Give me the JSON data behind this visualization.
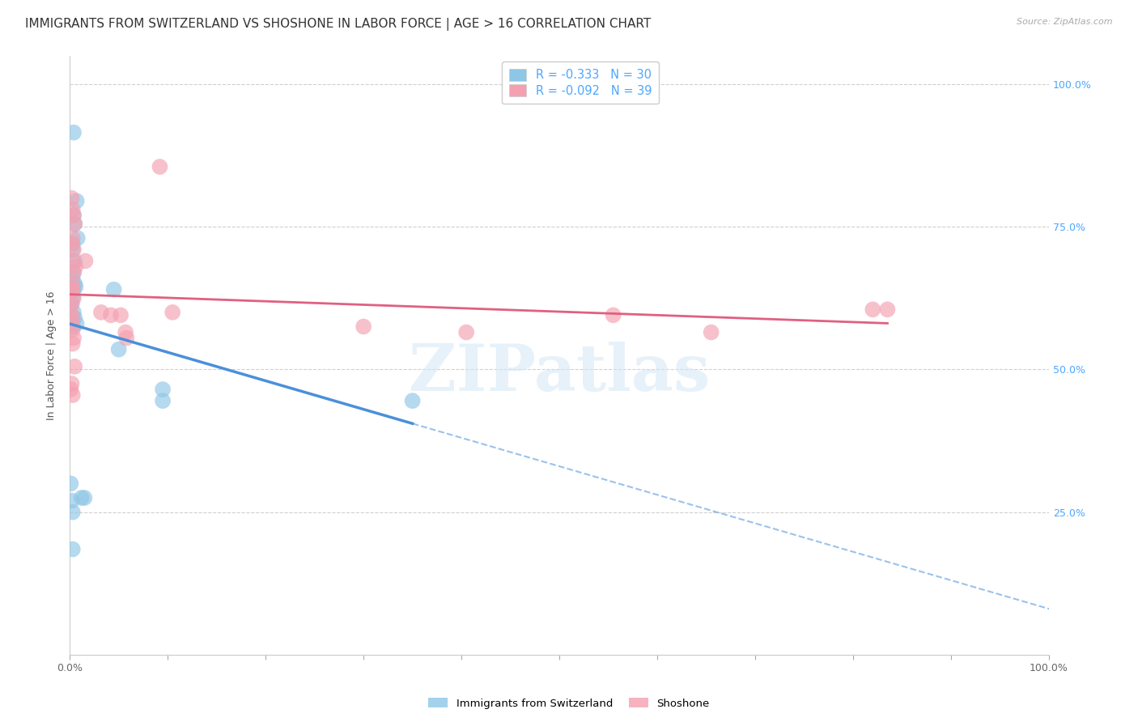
{
  "title": "IMMIGRANTS FROM SWITZERLAND VS SHOSHONE IN LABOR FORCE | AGE > 16 CORRELATION CHART",
  "source": "Source: ZipAtlas.com",
  "ylabel": "In Labor Force | Age > 16",
  "right_yticks": [
    "100.0%",
    "75.0%",
    "50.0%",
    "25.0%"
  ],
  "right_ytick_vals": [
    1.0,
    0.75,
    0.5,
    0.25
  ],
  "legend_swiss_r": "-0.333",
  "legend_swiss_n": "30",
  "legend_shoshone_r": "-0.092",
  "legend_shoshone_n": "39",
  "legend_label_swiss": "Immigrants from Switzerland",
  "legend_label_shoshone": "Shoshone",
  "swiss_color": "#8ec6e6",
  "shoshone_color": "#f4a0b0",
  "swiss_alpha": 0.65,
  "shoshone_alpha": 0.65,
  "swiss_points_x": [
    0.004,
    0.007,
    0.004,
    0.005,
    0.008,
    0.003,
    0.003,
    0.005,
    0.004,
    0.003,
    0.005,
    0.006,
    0.004,
    0.003,
    0.002,
    0.004,
    0.005,
    0.007,
    0.003,
    0.001,
    0.002,
    0.003,
    0.003,
    0.045,
    0.05,
    0.095,
    0.095,
    0.35,
    0.012,
    0.015
  ],
  "swiss_points_y": [
    0.915,
    0.795,
    0.77,
    0.755,
    0.73,
    0.72,
    0.71,
    0.69,
    0.67,
    0.66,
    0.65,
    0.645,
    0.64,
    0.625,
    0.615,
    0.6,
    0.59,
    0.58,
    0.575,
    0.3,
    0.27,
    0.25,
    0.185,
    0.64,
    0.535,
    0.465,
    0.445,
    0.445,
    0.275,
    0.275
  ],
  "shoshone_points_x": [
    0.002,
    0.003,
    0.004,
    0.005,
    0.003,
    0.002,
    0.004,
    0.003,
    0.006,
    0.004,
    0.003,
    0.002,
    0.003,
    0.004,
    0.002,
    0.001,
    0.003,
    0.002,
    0.003,
    0.004,
    0.003,
    0.005,
    0.002,
    0.001,
    0.003,
    0.016,
    0.032,
    0.042,
    0.052,
    0.057,
    0.058,
    0.092,
    0.105,
    0.3,
    0.405,
    0.555,
    0.655,
    0.82,
    0.835
  ],
  "shoshone_points_y": [
    0.8,
    0.78,
    0.77,
    0.755,
    0.73,
    0.72,
    0.71,
    0.69,
    0.68,
    0.67,
    0.65,
    0.64,
    0.64,
    0.625,
    0.615,
    0.6,
    0.59,
    0.58,
    0.57,
    0.555,
    0.545,
    0.505,
    0.475,
    0.465,
    0.455,
    0.69,
    0.6,
    0.595,
    0.595,
    0.565,
    0.555,
    0.855,
    0.6,
    0.575,
    0.565,
    0.595,
    0.565,
    0.605,
    0.605
  ],
  "watermark_zip": "ZIP",
  "watermark_atlas": "atlas",
  "background_color": "#ffffff",
  "grid_color": "#d0d0d0",
  "title_fontsize": 11,
  "axis_fontsize": 9,
  "marker_size": 200,
  "legend_r_color": "#4da6ff",
  "legend_n_color": "#4da6ff",
  "swiss_line_color": "#4a90d9",
  "shoshone_line_color": "#e06080"
}
